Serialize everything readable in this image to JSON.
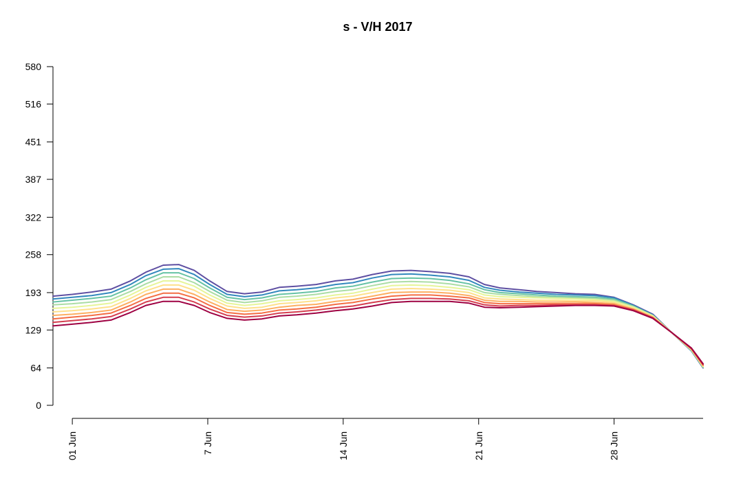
{
  "chart_data": {
    "type": "line",
    "title": "s - V/H 2017",
    "xlabel": "",
    "ylabel": "",
    "ylim": [
      0,
      580
    ],
    "xlim": [
      -1,
      32.6
    ],
    "yticks": [
      0,
      64,
      129,
      193,
      258,
      322,
      387,
      451,
      516,
      580
    ],
    "xticks": [
      {
        "label": "01 Jun",
        "day": 0
      },
      {
        "label": "7 Jun",
        "day": 7
      },
      {
        "label": "14 Jun",
        "day": 14
      },
      {
        "label": "21 Jun",
        "day": 21
      },
      {
        "label": "28 Jun",
        "day": 28
      }
    ],
    "grid": false,
    "legend": "none",
    "x": [
      -1,
      0,
      1,
      2,
      3,
      3.8,
      4.7,
      5.5,
      6.3,
      7.1,
      8,
      8.9,
      9.8,
      10.7,
      11.6,
      12.6,
      13.6,
      14.5,
      15.5,
      16.5,
      17.5,
      18.5,
      19.5,
      20.5,
      21.3,
      22.1,
      23.1,
      24,
      25,
      26,
      27,
      28,
      29,
      30,
      31,
      32,
      32.6
    ],
    "series": [
      {
        "color": "#5e4fa2",
        "values": [
          187,
          190,
          194,
          199,
          213,
          228,
          240,
          241,
          231,
          213,
          195,
          191,
          194,
          202,
          204,
          207,
          213,
          216,
          224,
          230,
          231,
          229,
          226,
          220,
          207,
          201,
          198,
          195,
          193,
          191,
          190,
          185,
          172,
          156,
          124,
          93,
          64
        ]
      },
      {
        "color": "#3288bd",
        "values": [
          182,
          185,
          188,
          193,
          207,
          222,
          233,
          234,
          224,
          207,
          190,
          186,
          189,
          196,
          198,
          201,
          207,
          210,
          218,
          224,
          225,
          223,
          220,
          214,
          202,
          197,
          194,
          192,
          190,
          189,
          188,
          184,
          171,
          155,
          124,
          93,
          65
        ]
      },
      {
        "color": "#66c2a5",
        "values": [
          177,
          180,
          183,
          187,
          201,
          215,
          227,
          227,
          217,
          201,
          185,
          181,
          184,
          190,
          192,
          195,
          201,
          204,
          211,
          217,
          218,
          217,
          214,
          208,
          198,
          193,
          191,
          189,
          187,
          186,
          185,
          182,
          170,
          154,
          124,
          94,
          65
        ]
      },
      {
        "color": "#abdda4",
        "values": [
          172,
          174,
          177,
          181,
          195,
          208,
          220,
          220,
          210,
          195,
          180,
          176,
          179,
          185,
          187,
          190,
          195,
          198,
          205,
          211,
          212,
          211,
          208,
          203,
          193,
          190,
          188,
          186,
          185,
          184,
          183,
          180,
          169,
          154,
          124,
          94,
          66
        ]
      },
      {
        "color": "#e6f598",
        "values": [
          166,
          168,
          171,
          175,
          189,
          202,
          213,
          213,
          204,
          189,
          175,
          171,
          174,
          179,
          181,
          184,
          189,
          192,
          199,
          205,
          206,
          205,
          202,
          198,
          189,
          186,
          185,
          184,
          183,
          182,
          181,
          178,
          168,
          153,
          124,
          95,
          66
        ]
      },
      {
        "color": "#fee08b",
        "values": [
          160,
          162,
          165,
          169,
          183,
          196,
          206,
          206,
          197,
          183,
          170,
          166,
          168,
          174,
          176,
          179,
          184,
          187,
          193,
          199,
          200,
          199,
          197,
          193,
          184,
          182,
          181,
          180,
          180,
          179,
          179,
          176,
          166,
          152,
          124,
          95,
          67
        ]
      },
      {
        "color": "#fdae61",
        "values": [
          154,
          156,
          159,
          163,
          177,
          190,
          199,
          199,
          190,
          177,
          164,
          161,
          163,
          168,
          171,
          173,
          178,
          181,
          187,
          193,
          194,
          194,
          192,
          188,
          180,
          178,
          178,
          177,
          177,
          177,
          176,
          174,
          165,
          151,
          124,
          96,
          68
        ]
      },
      {
        "color": "#f46d43",
        "values": [
          148,
          151,
          154,
          158,
          171,
          183,
          192,
          192,
          184,
          171,
          159,
          156,
          158,
          163,
          165,
          168,
          173,
          176,
          182,
          187,
          189,
          189,
          187,
          184,
          176,
          174,
          174,
          174,
          174,
          174,
          174,
          172,
          164,
          150,
          124,
          97,
          69
        ]
      },
      {
        "color": "#d53e4f",
        "values": [
          142,
          145,
          148,
          152,
          165,
          177,
          185,
          185,
          177,
          165,
          154,
          151,
          153,
          158,
          160,
          163,
          167,
          170,
          176,
          181,
          183,
          183,
          182,
          179,
          172,
          170,
          171,
          171,
          172,
          172,
          172,
          171,
          163,
          150,
          124,
          97,
          70
        ]
      },
      {
        "color": "#9e0142",
        "values": [
          136,
          139,
          142,
          146,
          159,
          171,
          178,
          178,
          171,
          159,
          149,
          146,
          148,
          153,
          155,
          158,
          162,
          165,
          170,
          176,
          178,
          178,
          178,
          175,
          168,
          167,
          168,
          169,
          170,
          171,
          171,
          170,
          162,
          149,
          124,
          98,
          71
        ]
      }
    ]
  }
}
